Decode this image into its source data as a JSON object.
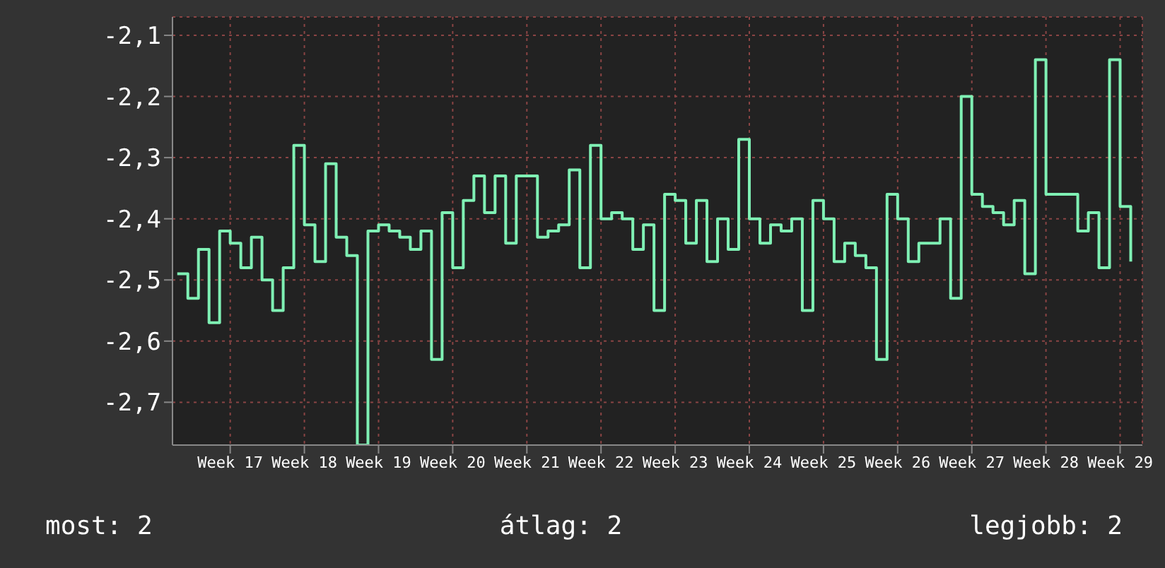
{
  "chart_data": {
    "type": "step",
    "categories": [
      null,
      null,
      null,
      null,
      null,
      "Week 17",
      null,
      null,
      null,
      null,
      null,
      null,
      "Week 18",
      null,
      null,
      null,
      null,
      null,
      null,
      "Week 19",
      null,
      null,
      null,
      null,
      null,
      null,
      "Week 20",
      null,
      null,
      null,
      null,
      null,
      null,
      "Week 21",
      null,
      null,
      null,
      null,
      null,
      null,
      "Week 22",
      null,
      null,
      null,
      null,
      null,
      null,
      "Week 23",
      null,
      null,
      null,
      null,
      null,
      null,
      "Week 24",
      null,
      null,
      null,
      null,
      null,
      null,
      "Week 25",
      null,
      null,
      null,
      null,
      null,
      null,
      "Week 26",
      null,
      null,
      null,
      null,
      null,
      null,
      "Week 27",
      null,
      null,
      null,
      null,
      null,
      null,
      "Week 28",
      null,
      null,
      null,
      null,
      null,
      null,
      "Week 29",
      null
    ],
    "series": [
      {
        "color": "#7ff0b4",
        "values": [
          -2.49,
          -2.53,
          -2.45,
          -2.57,
          -2.42,
          -2.44,
          -2.48,
          -2.43,
          -2.5,
          -2.55,
          -2.48,
          -2.28,
          -2.41,
          -2.47,
          -2.31,
          -2.43,
          -2.46,
          -2.77,
          -2.42,
          -2.41,
          -2.42,
          -2.43,
          -2.45,
          -2.42,
          -2.63,
          -2.39,
          -2.48,
          -2.37,
          -2.33,
          -2.39,
          -2.33,
          -2.44,
          -2.33,
          -2.33,
          -2.43,
          -2.42,
          -2.41,
          -2.32,
          -2.48,
          -2.28,
          -2.4,
          -2.39,
          -2.4,
          -2.45,
          -2.41,
          -2.55,
          -2.36,
          -2.37,
          -2.44,
          -2.37,
          -2.47,
          -2.4,
          -2.45,
          -2.27,
          -2.4,
          -2.44,
          -2.41,
          -2.42,
          -2.4,
          -2.55,
          -2.37,
          -2.4,
          -2.47,
          -2.44,
          -2.46,
          -2.48,
          -2.63,
          -2.36,
          -2.4,
          -2.47,
          -2.44,
          -2.44,
          -2.4,
          -2.53,
          -2.2,
          -2.36,
          -2.38,
          -2.39,
          -2.41,
          -2.37,
          -2.49,
          -2.14,
          -2.36,
          -2.36,
          -2.36,
          -2.42,
          -2.39,
          -2.48,
          -2.14,
          -2.38,
          -2.47
        ]
      }
    ],
    "ylim": [
      -2.77,
      -2.07
    ],
    "yticks": [
      {
        "value": -2.7,
        "label": "-2,7"
      },
      {
        "value": -2.6,
        "label": "-2,6"
      },
      {
        "value": -2.5,
        "label": "-2,5"
      },
      {
        "value": -2.4,
        "label": "-2,4"
      },
      {
        "value": -2.3,
        "label": "-2,3"
      },
      {
        "value": -2.2,
        "label": "-2,2"
      },
      {
        "value": -2.1,
        "label": "-2,1"
      }
    ],
    "grid": true,
    "annotations": [
      "most: 2",
      "átlag: 2",
      "legjobb: 2"
    ]
  }
}
